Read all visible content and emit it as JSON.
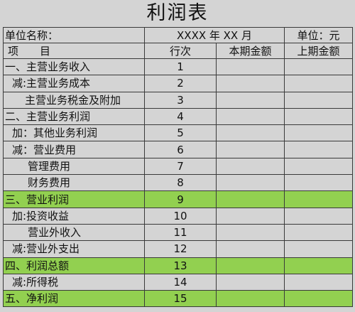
{
  "title": "利润表",
  "header": {
    "company_label": "单位名称：",
    "period": "XXXX 年 XX 月",
    "unit": "单位：元"
  },
  "columns": {
    "item": "项　　目",
    "seq": "行次",
    "current": "本期金额",
    "previous": "上期金额"
  },
  "rows": [
    {
      "label": "一、主营业务收入",
      "seq": "1"
    },
    {
      "label": "减:主营业务成本",
      "seq": "2"
    },
    {
      "label": "主营业务税金及附加",
      "seq": "3"
    },
    {
      "label": "二、主营业务利润",
      "seq": "4"
    },
    {
      "label": "加：其他业务利润",
      "seq": "5"
    },
    {
      "label": "减：营业费用",
      "seq": "6"
    },
    {
      "label": "管理费用",
      "seq": "7"
    },
    {
      "label": "财务费用",
      "seq": "8"
    },
    {
      "label": "三、营业利润",
      "seq": "9"
    },
    {
      "label": "加:投资收益",
      "seq": "10"
    },
    {
      "label": "营业外收入",
      "seq": "11"
    },
    {
      "label": "减:营业外支出",
      "seq": "12"
    },
    {
      "label": "四、利润总额",
      "seq": "13"
    },
    {
      "label": "减:所得税",
      "seq": "14"
    },
    {
      "label": "五、净利润",
      "seq": "15"
    }
  ],
  "colors": {
    "highlight": "#92d050",
    "background": "#d4d4d4",
    "grid": "#3a3a3a"
  }
}
